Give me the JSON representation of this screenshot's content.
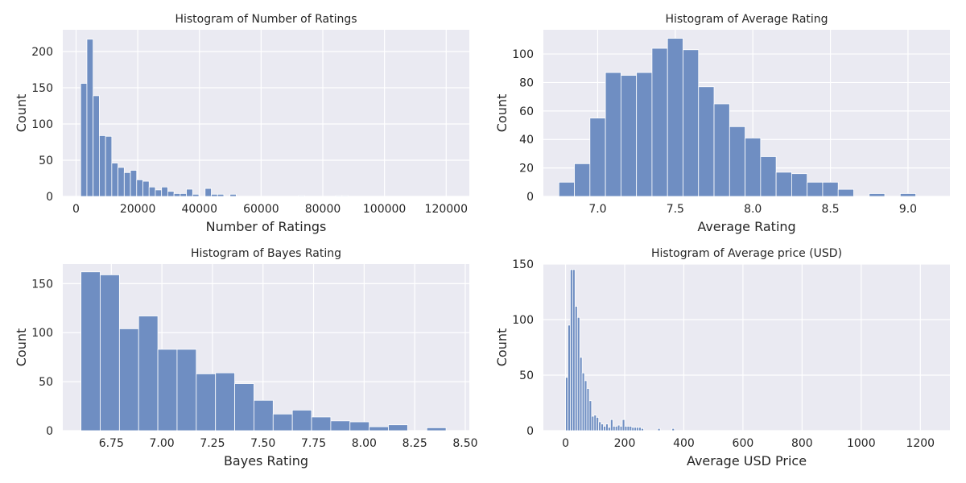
{
  "figure": {
    "background": "#ffffff",
    "plot_background": "#eaeaf2",
    "grid_color": "#ffffff",
    "bar_color": "#6f8ec2",
    "bar_edge": "#ffffff"
  },
  "chart_data": [
    {
      "type": "bar",
      "title": "Histogram of Number of Ratings",
      "xlabel": "Number of Ratings",
      "ylabel": "Count",
      "xlim": [
        -4300,
        127500
      ],
      "ylim": [
        0,
        230
      ],
      "xticks": [
        0,
        20000,
        40000,
        60000,
        80000,
        100000,
        120000
      ],
      "xtick_labels": [
        "0",
        "20000",
        "40000",
        "60000",
        "80000",
        "100000",
        "120000"
      ],
      "yticks": [
        0,
        50,
        100,
        150,
        200
      ],
      "ytick_labels": [
        "0",
        "50",
        "100",
        "150",
        "200"
      ],
      "grid": true,
      "bin_start": 1500,
      "bin_width": 2017,
      "values": [
        156,
        217,
        139,
        84,
        83,
        46,
        40,
        33,
        36,
        23,
        21,
        13,
        9,
        13,
        7,
        4,
        4,
        10,
        3,
        0,
        11,
        3,
        3,
        0,
        3,
        0,
        0,
        0,
        0,
        0,
        0,
        0,
        0,
        0,
        0,
        1,
        0,
        0,
        0,
        0,
        0,
        1,
        1,
        0,
        0,
        0,
        0,
        0,
        0,
        0,
        0,
        0,
        0,
        0,
        0,
        0,
        0,
        0,
        0,
        0,
        0,
        0,
        0,
        0,
        0,
        0,
        0,
        0,
        0,
        0,
        0,
        0,
        0,
        0,
        0,
        0,
        0,
        0,
        0,
        0,
        0,
        0,
        0,
        0,
        0,
        0,
        0,
        0,
        0,
        0,
        0,
        0,
        0,
        0,
        0,
        0,
        0,
        0,
        0,
        0,
        0,
        0,
        0,
        0,
        0,
        0,
        0,
        0,
        0,
        0,
        0,
        0,
        0,
        0,
        0,
        0,
        0,
        0,
        1
      ]
    },
    {
      "type": "bar",
      "title": "Histogram of Average Rating",
      "xlabel": "Average Rating",
      "ylabel": "Count",
      "xlim": [
        6.65,
        9.27
      ],
      "ylim": [
        0,
        117
      ],
      "xticks": [
        7.0,
        7.5,
        8.0,
        8.5,
        9.0
      ],
      "xtick_labels": [
        "7.0",
        "7.5",
        "8.0",
        "8.5",
        "9.0"
      ],
      "yticks": [
        0,
        20,
        40,
        60,
        80,
        100
      ],
      "ytick_labels": [
        "0",
        "20",
        "40",
        "60",
        "80",
        "100"
      ],
      "grid": true,
      "bin_start": 6.75,
      "bin_width": 0.1,
      "values": [
        10,
        23,
        55,
        87,
        85,
        87,
        104,
        111,
        103,
        77,
        65,
        49,
        41,
        28,
        17,
        16,
        10,
        10,
        5,
        0,
        2,
        0,
        2
      ]
    },
    {
      "type": "bar",
      "title": "Histogram of Bayes Rating",
      "xlabel": "Bayes Rating",
      "ylabel": "Count",
      "xlim": [
        6.51,
        8.52
      ],
      "ylim": [
        0,
        170
      ],
      "xticks": [
        6.75,
        7.0,
        7.25,
        7.5,
        7.75,
        8.0,
        8.25,
        8.5
      ],
      "xtick_labels": [
        "6.75",
        "7.00",
        "7.25",
        "7.50",
        "7.75",
        "8.00",
        "8.25",
        "8.50"
      ],
      "yticks": [
        0,
        50,
        100,
        150
      ],
      "ytick_labels": [
        "0",
        "50",
        "100",
        "150"
      ],
      "grid": true,
      "bin_start": 6.6,
      "bin_width": 0.095,
      "values": [
        162,
        159,
        104,
        117,
        83,
        83,
        58,
        59,
        48,
        31,
        17,
        21,
        14,
        10,
        9,
        4,
        6,
        0,
        3
      ]
    },
    {
      "type": "bar",
      "title": "Histogram of Average price (USD)",
      "xlabel": "Average USD Price",
      "ylabel": "Count",
      "xlim": [
        -75,
        1300
      ],
      "ylim": [
        0,
        150
      ],
      "xticks": [
        0,
        200,
        400,
        600,
        800,
        1000,
        1200
      ],
      "xtick_labels": [
        "0",
        "200",
        "400",
        "600",
        "800",
        "1000",
        "1200"
      ],
      "yticks": [
        0,
        50,
        100,
        150
      ],
      "ytick_labels": [
        "0",
        "50",
        "100",
        "150"
      ],
      "grid": true,
      "bin_start": 0,
      "bin_width": 8,
      "values": [
        48,
        95,
        145,
        145,
        112,
        102,
        66,
        52,
        45,
        38,
        27,
        13,
        14,
        12,
        8,
        6,
        4,
        6,
        3,
        10,
        4,
        4,
        5,
        4,
        10,
        4,
        4,
        4,
        3,
        3,
        3,
        3,
        2,
        0,
        0,
        0,
        0,
        0,
        0,
        2,
        0,
        0,
        0,
        0,
        0,
        2,
        0,
        0,
        0,
        0,
        0,
        0,
        0,
        0,
        0,
        0,
        0,
        0,
        0,
        0,
        0,
        0,
        0,
        0,
        0,
        0,
        0,
        0,
        0,
        0,
        0,
        0,
        0,
        0,
        0,
        0,
        0,
        0,
        0,
        0,
        0,
        0,
        0,
        0,
        0,
        0,
        0,
        0,
        0,
        0,
        0,
        0,
        0,
        0,
        0,
        0,
        0,
        0,
        0,
        0,
        0,
        0,
        0,
        0,
        0,
        0,
        0,
        0,
        0,
        0,
        0,
        0,
        0,
        0,
        0,
        0,
        0,
        0,
        0,
        0,
        0,
        0,
        0,
        0,
        0,
        0,
        0,
        0,
        0,
        0,
        0,
        0,
        0,
        0,
        0,
        0,
        0,
        0,
        0,
        0,
        0,
        0,
        0,
        0,
        0,
        0,
        0,
        0,
        0,
        0,
        0,
        0,
        0,
        0,
        0,
        0,
        0,
        0,
        0,
        0
      ]
    }
  ]
}
